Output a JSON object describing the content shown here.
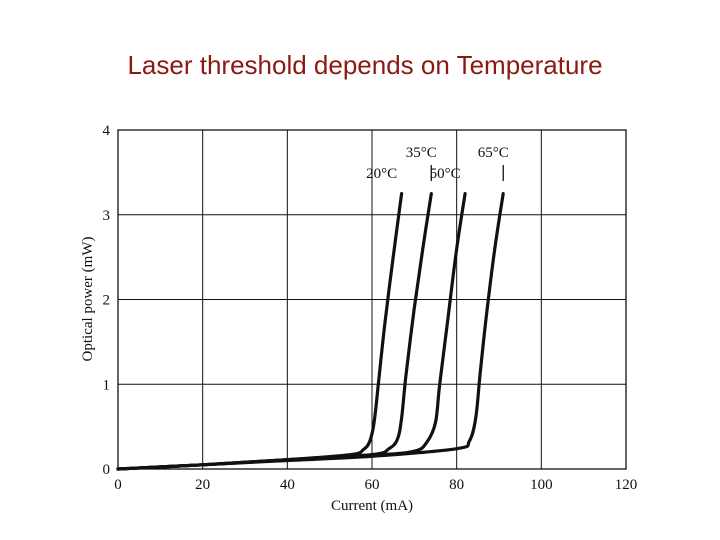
{
  "slide": {
    "title": "Laser threshold depends on Temperature",
    "title_color": "#8b1a12"
  },
  "chart_data": {
    "type": "line",
    "title": "",
    "xlabel": "Current (mA)",
    "ylabel": "Optical power (mW)",
    "xlim": [
      0,
      120
    ],
    "ylim": [
      0,
      4
    ],
    "xticks": [
      0,
      20,
      40,
      60,
      80,
      100,
      120
    ],
    "yticks": [
      0,
      1,
      2,
      3,
      4
    ],
    "grid": true,
    "line_color": "#111111",
    "series": [
      {
        "name": "20°C",
        "x": [
          0,
          20,
          40,
          55,
          58,
          59.5,
          60.5,
          61.5,
          63,
          65,
          67
        ],
        "y": [
          0,
          0.05,
          0.11,
          0.17,
          0.23,
          0.33,
          0.55,
          1.0,
          1.7,
          2.5,
          3.25
        ]
      },
      {
        "name": "35°C",
        "x": [
          0,
          20,
          40,
          60,
          64,
          66,
          67,
          68,
          70,
          72,
          74
        ],
        "y": [
          0,
          0.05,
          0.11,
          0.17,
          0.24,
          0.35,
          0.6,
          1.1,
          1.9,
          2.6,
          3.25
        ]
      },
      {
        "name": "50°C",
        "x": [
          0,
          20,
          40,
          60,
          70,
          73,
          75,
          76,
          78,
          80,
          82
        ],
        "y": [
          0,
          0.05,
          0.11,
          0.16,
          0.21,
          0.32,
          0.55,
          1.0,
          1.8,
          2.6,
          3.25
        ]
      },
      {
        "name": "65°C",
        "x": [
          0,
          20,
          40,
          60,
          80,
          83,
          84.5,
          85.5,
          87,
          89,
          91
        ],
        "y": [
          0,
          0.05,
          0.1,
          0.15,
          0.24,
          0.33,
          0.6,
          1.1,
          1.8,
          2.6,
          3.25
        ]
      }
    ]
  }
}
